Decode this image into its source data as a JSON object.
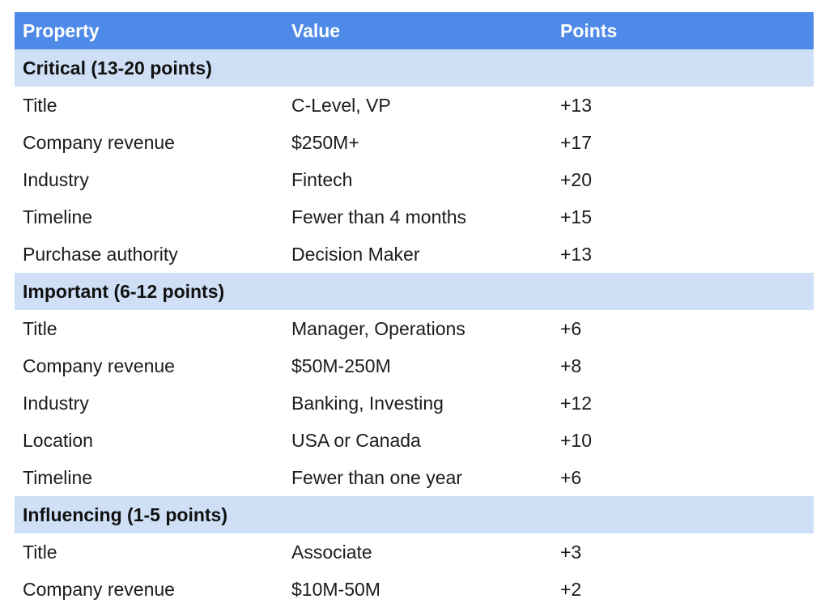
{
  "table": {
    "headers": [
      "Property",
      "Value",
      "Points"
    ],
    "sections": [
      {
        "title": "Critical (13-20 points)",
        "rows": [
          {
            "property": "Title",
            "value": "C-Level, VP",
            "points": "+13"
          },
          {
            "property": "Company revenue",
            "value": "$250M+",
            "points": "+17"
          },
          {
            "property": "Industry",
            "value": "Fintech",
            "points": "+20"
          },
          {
            "property": "Timeline",
            "value": "Fewer than 4 months",
            "points": "+15"
          },
          {
            "property": "Purchase authority",
            "value": "Decision Maker",
            "points": "+13"
          }
        ]
      },
      {
        "title": "Important (6-12 points)",
        "rows": [
          {
            "property": "Title",
            "value": "Manager, Operations",
            "points": "+6"
          },
          {
            "property": "Company revenue",
            "value": "$50M-250M",
            "points": "+8"
          },
          {
            "property": "Industry",
            "value": "Banking, Investing",
            "points": "+12"
          },
          {
            "property": "Location",
            "value": "USA or Canada",
            "points": "+10"
          },
          {
            "property": "Timeline",
            "value": "Fewer than one year",
            "points": "+6"
          }
        ]
      },
      {
        "title": "Influencing (1-5 points)",
        "rows": [
          {
            "property": "Title",
            "value": "Associate",
            "points": "+3"
          },
          {
            "property": "Company revenue",
            "value": "$10M-50M",
            "points": "+2"
          }
        ]
      }
    ]
  },
  "colors": {
    "header_bg": "#4f8ae8",
    "section_bg": "#cfe0f6",
    "header_text": "#ffffff"
  }
}
